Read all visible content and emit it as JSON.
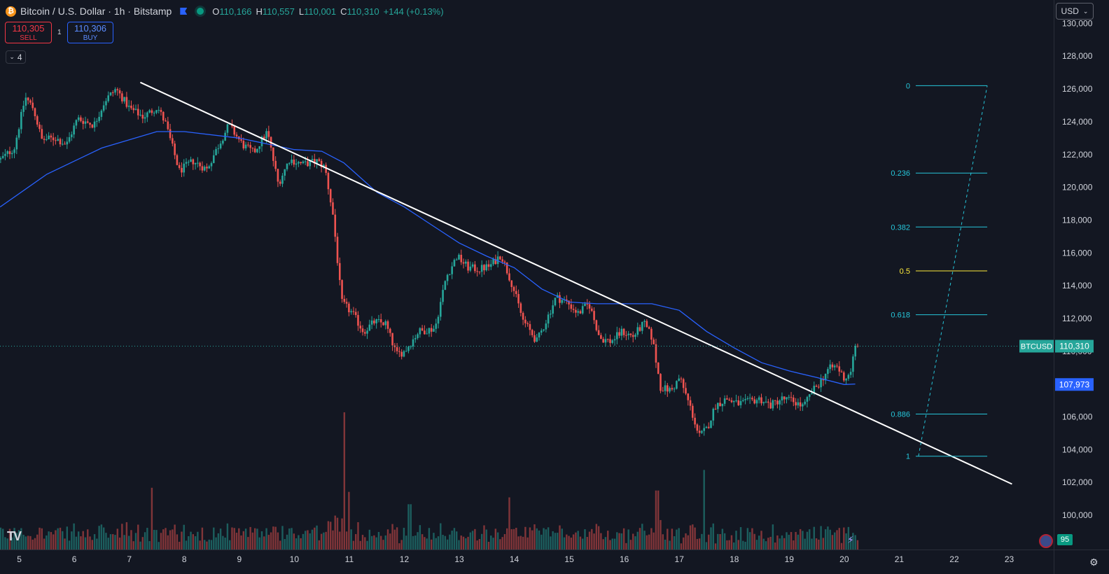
{
  "header": {
    "symbol_icon": "bitcoin-icon",
    "title": "Bitcoin / U.S. Dollar · 1h · Bitstamp",
    "ohlc": [
      {
        "k": "O",
        "v": "110,166"
      },
      {
        "k": "H",
        "v": "110,557"
      },
      {
        "k": "L",
        "v": "110,001"
      },
      {
        "k": "C",
        "v": "110,310"
      },
      {
        "k": "",
        "v": "+144 (+0.13%)"
      }
    ]
  },
  "trade": {
    "sell_price": "110,305",
    "sell_label": "SELL",
    "spread": "1",
    "buy_price": "110,306",
    "buy_label": "BUY"
  },
  "indicators": {
    "count": "4"
  },
  "currency": {
    "label": "USD"
  },
  "logo": {
    "text": "TV"
  },
  "badge": {
    "value": "95"
  },
  "colors": {
    "background": "#131722",
    "up": "#26a69a",
    "down": "#ef5350",
    "ma": "#2962ff",
    "trendline": "#ffffff",
    "fib": "#26c6da",
    "fib_mid": "#ffeb3b"
  },
  "chart_data": {
    "type": "candlestick",
    "x_ticks": [
      "5",
      "6",
      "7",
      "8",
      "9",
      "10",
      "11",
      "12",
      "13",
      "14",
      "15",
      "16",
      "17",
      "18",
      "19",
      "20",
      "21",
      "22",
      "23"
    ],
    "y_ticks": [
      "130,000",
      "128,000",
      "126,000",
      "124,000",
      "122,000",
      "120,000",
      "118,000",
      "116,000",
      "114,000",
      "112,000",
      "110,000",
      "108,000",
      "106,000",
      "104,000",
      "102,000",
      "100,000"
    ],
    "y_range": [
      98700,
      130500
    ],
    "x_range_days": [
      4.65,
      23.6
    ],
    "price_anchors": [
      [
        4.7,
        121700
      ],
      [
        4.95,
        122400
      ],
      [
        5.15,
        125500
      ],
      [
        5.3,
        124800
      ],
      [
        5.45,
        122900
      ],
      [
        5.7,
        123000
      ],
      [
        5.9,
        122600
      ],
      [
        6.1,
        124200
      ],
      [
        6.4,
        123800
      ],
      [
        6.6,
        125300
      ],
      [
        6.8,
        126000
      ],
      [
        7.05,
        124800
      ],
      [
        7.3,
        124300
      ],
      [
        7.55,
        124900
      ],
      [
        7.7,
        123900
      ],
      [
        7.95,
        121000
      ],
      [
        8.2,
        121600
      ],
      [
        8.45,
        121100
      ],
      [
        8.7,
        122800
      ],
      [
        8.85,
        123800
      ],
      [
        9.1,
        122600
      ],
      [
        9.3,
        122100
      ],
      [
        9.55,
        123400
      ],
      [
        9.75,
        120200
      ],
      [
        9.95,
        121700
      ],
      [
        10.2,
        121400
      ],
      [
        10.45,
        121600
      ],
      [
        10.6,
        121200
      ],
      [
        10.75,
        118200
      ],
      [
        10.9,
        113000
      ],
      [
        11.1,
        112300
      ],
      [
        11.3,
        111200
      ],
      [
        11.5,
        111800
      ],
      [
        11.7,
        111700
      ],
      [
        11.9,
        109800
      ],
      [
        12.05,
        110000
      ],
      [
        12.3,
        111200
      ],
      [
        12.6,
        111400
      ],
      [
        12.8,
        114500
      ],
      [
        13.0,
        115800
      ],
      [
        13.2,
        115100
      ],
      [
        13.4,
        115000
      ],
      [
        13.6,
        115200
      ],
      [
        13.8,
        115900
      ],
      [
        14.0,
        114100
      ],
      [
        14.2,
        111900
      ],
      [
        14.45,
        110600
      ],
      [
        14.6,
        111700
      ],
      [
        14.8,
        113300
      ],
      [
        15.0,
        113000
      ],
      [
        15.2,
        112300
      ],
      [
        15.4,
        112900
      ],
      [
        15.6,
        110800
      ],
      [
        15.8,
        110600
      ],
      [
        16.0,
        111200
      ],
      [
        16.2,
        110900
      ],
      [
        16.4,
        111700
      ],
      [
        16.55,
        110800
      ],
      [
        16.7,
        107800
      ],
      [
        16.9,
        107600
      ],
      [
        17.05,
        108400
      ],
      [
        17.25,
        106500
      ],
      [
        17.4,
        104800
      ],
      [
        17.55,
        105300
      ],
      [
        17.7,
        106700
      ],
      [
        17.9,
        107100
      ],
      [
        18.1,
        106800
      ],
      [
        18.3,
        106900
      ],
      [
        18.5,
        107100
      ],
      [
        18.7,
        106700
      ],
      [
        18.9,
        107100
      ],
      [
        19.1,
        107000
      ],
      [
        19.3,
        106600
      ],
      [
        19.45,
        107500
      ],
      [
        19.6,
        108100
      ],
      [
        19.75,
        108900
      ],
      [
        19.9,
        109100
      ],
      [
        20.05,
        108300
      ],
      [
        20.15,
        108700
      ],
      [
        20.25,
        110310
      ]
    ],
    "series": [
      {
        "name": "BTCUSD",
        "last_value": "110,310"
      },
      {
        "name": "",
        "last_value": "107,973"
      }
    ],
    "ma_anchors": [
      [
        4.65,
        118800
      ],
      [
        5.5,
        120800
      ],
      [
        6.5,
        122400
      ],
      [
        7.5,
        123400
      ],
      [
        8.0,
        123400
      ],
      [
        9.0,
        123000
      ],
      [
        10.0,
        122300
      ],
      [
        10.5,
        122200
      ],
      [
        10.9,
        121500
      ],
      [
        11.5,
        119700
      ],
      [
        12.0,
        118800
      ],
      [
        12.5,
        117700
      ],
      [
        13.0,
        116600
      ],
      [
        13.5,
        115800
      ],
      [
        14.0,
        115100
      ],
      [
        14.5,
        113800
      ],
      [
        15.0,
        113000
      ],
      [
        15.5,
        112900
      ],
      [
        16.0,
        112900
      ],
      [
        16.5,
        112900
      ],
      [
        17.0,
        112500
      ],
      [
        17.5,
        111200
      ],
      [
        18.0,
        110200
      ],
      [
        18.5,
        109300
      ],
      [
        19.0,
        108800
      ],
      [
        19.5,
        108400
      ],
      [
        20.0,
        107973
      ],
      [
        20.2,
        108000
      ]
    ],
    "volume_spikes": [
      [
        10.9,
        1.0
      ],
      [
        17.45,
        0.58
      ],
      [
        11.0,
        0.42
      ],
      [
        13.9,
        0.38
      ],
      [
        16.6,
        0.43
      ],
      [
        7.4,
        0.45
      ],
      [
        12.1,
        0.33
      ]
    ],
    "trendline": {
      "from": [
        7.2,
        126400
      ],
      "to": [
        23.05,
        101900
      ]
    },
    "fibonacci": {
      "levels": [
        {
          "label": "0",
          "price": 126200
        },
        {
          "label": "0.236",
          "price": 120870
        },
        {
          "label": "0.382",
          "price": 117580
        },
        {
          "label": "0.5",
          "price": 114900
        },
        {
          "label": "0.618",
          "price": 112230
        },
        {
          "label": "0.886",
          "price": 106170
        },
        {
          "label": "1",
          "price": 103600
        }
      ],
      "x_from": 21.3,
      "x_to": 22.6,
      "diagonal_from": [
        21.35,
        103600
      ],
      "diagonal_to": [
        22.6,
        126200
      ]
    }
  }
}
